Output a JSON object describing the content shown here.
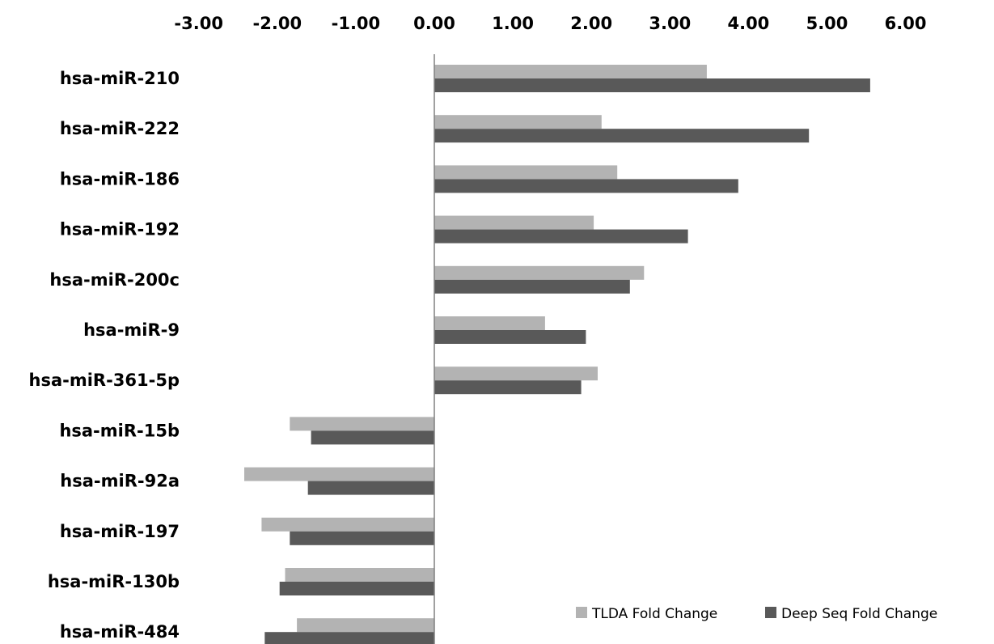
{
  "chart_data": {
    "type": "bar",
    "orientation": "horizontal",
    "title": "",
    "xlabel": "",
    "ylabel": "",
    "xlim": [
      -3,
      6
    ],
    "x_ticks": [
      "-3.00",
      "-2.00",
      "-1.00",
      "0.00",
      "1.00",
      "2.00",
      "3.00",
      "4.00",
      "5.00",
      "6.00"
    ],
    "x_tick_values": [
      -3,
      -2,
      -1,
      0,
      1,
      2,
      3,
      4,
      5,
      6
    ],
    "x_axis_position": "top",
    "grid": false,
    "legend_position": "bottom-right",
    "categories": [
      "hsa-miR-210",
      "hsa-miR-222",
      "hsa-miR-186",
      "hsa-miR-192",
      "hsa-miR-200c",
      "hsa-miR-9",
      "hsa-miR-361-5p",
      "hsa-miR-15b",
      "hsa-miR-92a",
      "hsa-miR-197",
      "hsa-miR-130b",
      "hsa-miR-484"
    ],
    "series": [
      {
        "name": "TLDA Fold Change",
        "color": "#b3b3b3",
        "values": [
          3.47,
          2.13,
          2.33,
          2.03,
          2.67,
          1.41,
          2.08,
          -1.84,
          -2.42,
          -2.2,
          -1.9,
          -1.75
        ]
      },
      {
        "name": "Deep Seq Fold Change",
        "color": "#595959",
        "values": [
          5.55,
          4.77,
          3.87,
          3.23,
          2.49,
          1.93,
          1.87,
          -1.57,
          -1.61,
          -1.84,
          -1.97,
          -2.16
        ]
      }
    ]
  }
}
